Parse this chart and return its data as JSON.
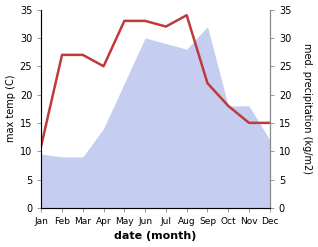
{
  "months": [
    "Jan",
    "Feb",
    "Mar",
    "Apr",
    "May",
    "Jun",
    "Jul",
    "Aug",
    "Sep",
    "Oct",
    "Nov",
    "Dec"
  ],
  "temperature": [
    11,
    27,
    27,
    25,
    33,
    33,
    32,
    34,
    22,
    18,
    15,
    15
  ],
  "precipitation": [
    9.5,
    9.0,
    9.0,
    14,
    22,
    30,
    29,
    28,
    32,
    18,
    18,
    12
  ],
  "temp_color": "#c0393b",
  "precip_fill_color": "#c5cef0",
  "ylim": [
    0,
    35
  ],
  "yticks": [
    0,
    5,
    10,
    15,
    20,
    25,
    30,
    35
  ],
  "ylabel_left": "max temp (C)",
  "ylabel_right": "med. precipitation (kg/m2)",
  "xlabel": "date (month)",
  "bg_color": "#ffffff",
  "spine_color": "#888888"
}
